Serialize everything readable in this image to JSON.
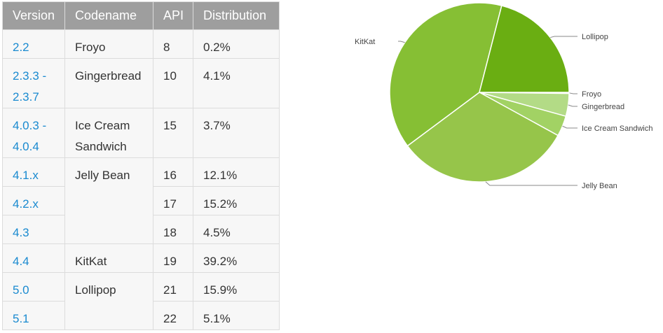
{
  "table": {
    "headers": [
      "Version",
      "Codename",
      "API",
      "Distribution"
    ],
    "rows": [
      {
        "version": "2.2",
        "codename": "Froyo",
        "api": "8",
        "distribution": "0.2%"
      },
      {
        "version": "2.3.3 - 2.3.7",
        "codename": "Gingerbread",
        "api": "10",
        "distribution": "4.1%"
      },
      {
        "version": "4.0.3 - 4.0.4",
        "codename": "Ice Cream Sandwich",
        "api": "15",
        "distribution": "3.7%"
      },
      {
        "version": "4.1.x",
        "codename": "Jelly Bean",
        "api": "16",
        "distribution": "12.1%"
      },
      {
        "version": "4.2.x",
        "codename": "",
        "api": "17",
        "distribution": "15.2%"
      },
      {
        "version": "4.3",
        "codename": "",
        "api": "18",
        "distribution": "4.5%"
      },
      {
        "version": "4.4",
        "codename": "KitKat",
        "api": "19",
        "distribution": "39.2%"
      },
      {
        "version": "5.0",
        "codename": "Lollipop",
        "api": "21",
        "distribution": "15.9%"
      },
      {
        "version": "5.1",
        "codename": "",
        "api": "22",
        "distribution": "5.1%"
      }
    ]
  },
  "chart_data": {
    "type": "pie",
    "title": "",
    "start": "3 o'clock",
    "direction": "clockwise",
    "labels": [
      "Froyo",
      "Gingerbread",
      "Ice Cream Sandwich",
      "Jelly Bean",
      "KitKat",
      "Lollipop"
    ],
    "values": [
      0.2,
      4.1,
      3.7,
      31.8,
      39.2,
      21.0
    ],
    "colors": [
      "#c5e4a0",
      "#b3db86",
      "#a2d264",
      "#96c54a",
      "#86bf34",
      "#6aae12"
    ]
  }
}
